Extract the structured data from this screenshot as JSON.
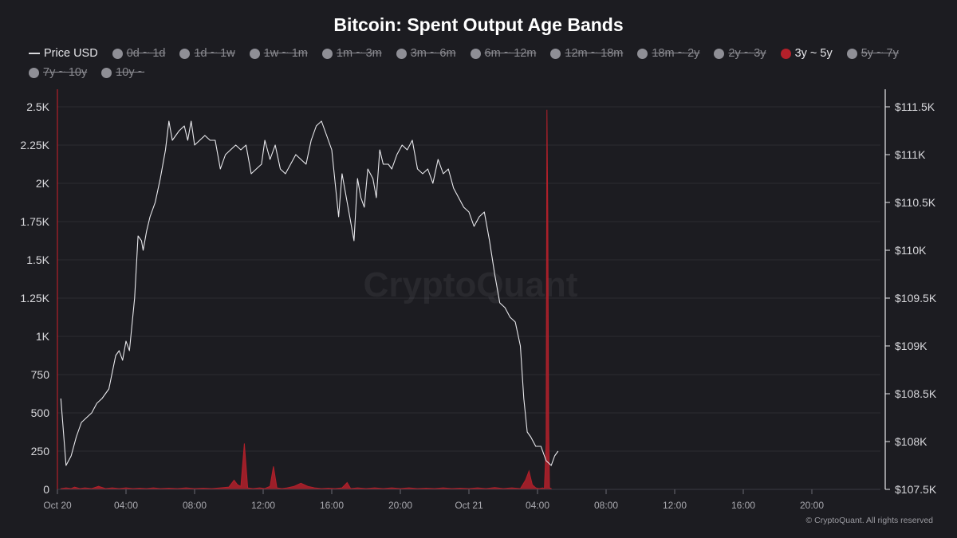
{
  "title": "Bitcoin: Spent Output Age Bands",
  "watermark": "CryptoQuant",
  "footer": "© CryptoQuant. All rights reserved",
  "colors": {
    "background": "#1c1c21",
    "price_line": "#e8e8ec",
    "band_3y_5y": "#b3202a",
    "inactive_dot": "#8f8f96",
    "grid": "#2b2b31"
  },
  "legend": [
    {
      "label": "Price USD",
      "kind": "line",
      "active": true
    },
    {
      "label": "0d ~ 1d",
      "kind": "dot",
      "active": false
    },
    {
      "label": "1d ~ 1w",
      "kind": "dot",
      "active": false
    },
    {
      "label": "1w ~ 1m",
      "kind": "dot",
      "active": false
    },
    {
      "label": "1m ~ 3m",
      "kind": "dot",
      "active": false
    },
    {
      "label": "3m ~ 6m",
      "kind": "dot",
      "active": false
    },
    {
      "label": "6m ~ 12m",
      "kind": "dot",
      "active": false
    },
    {
      "label": "12m ~ 18m",
      "kind": "dot",
      "active": false
    },
    {
      "label": "18m ~ 2y",
      "kind": "dot",
      "active": false
    },
    {
      "label": "2y ~ 3y",
      "kind": "dot",
      "active": false
    },
    {
      "label": "3y ~ 5y",
      "kind": "dot",
      "active": true,
      "color": "#b3202a"
    },
    {
      "label": "5y ~ 7y",
      "kind": "dot",
      "active": false
    },
    {
      "label": "7y ~ 10y",
      "kind": "dot",
      "active": false
    },
    {
      "label": "10y ~",
      "kind": "dot",
      "active": false
    }
  ],
  "chart_data": {
    "type": "line",
    "x_unit": "hours from Oct 20 00:00",
    "xlim": [
      0,
      48
    ],
    "x_ticks": [
      {
        "x": 0,
        "label": "Oct 20"
      },
      {
        "x": 4,
        "label": "04:00"
      },
      {
        "x": 8,
        "label": "08:00"
      },
      {
        "x": 12,
        "label": "12:00"
      },
      {
        "x": 16,
        "label": "16:00"
      },
      {
        "x": 20,
        "label": "20:00"
      },
      {
        "x": 24,
        "label": "Oct 21"
      },
      {
        "x": 28,
        "label": "04:00"
      },
      {
        "x": 32,
        "label": "08:00"
      },
      {
        "x": 36,
        "label": "12:00"
      },
      {
        "x": 40,
        "label": "16:00"
      },
      {
        "x": 44,
        "label": "20:00"
      }
    ],
    "y_left": {
      "ylim": [
        0,
        2500
      ],
      "ticks": [
        {
          "v": 0,
          "label": "0"
        },
        {
          "v": 250,
          "label": "250"
        },
        {
          "v": 500,
          "label": "500"
        },
        {
          "v": 750,
          "label": "750"
        },
        {
          "v": 1000,
          "label": "1K"
        },
        {
          "v": 1250,
          "label": "1.25K"
        },
        {
          "v": 1500,
          "label": "1.5K"
        },
        {
          "v": 1750,
          "label": "1.75K"
        },
        {
          "v": 2000,
          "label": "2K"
        },
        {
          "v": 2250,
          "label": "2.25K"
        },
        {
          "v": 2500,
          "label": "2.5K"
        }
      ]
    },
    "y_right": {
      "ylim": [
        107500,
        111500
      ],
      "ticks": [
        {
          "v": 107500,
          "label": "$107.5K"
        },
        {
          "v": 108000,
          "label": "$108K"
        },
        {
          "v": 108500,
          "label": "$108.5K"
        },
        {
          "v": 109000,
          "label": "$109K"
        },
        {
          "v": 109500,
          "label": "$109.5K"
        },
        {
          "v": 110000,
          "label": "$110K"
        },
        {
          "v": 110500,
          "label": "$110.5K"
        },
        {
          "v": 111000,
          "label": "$111K"
        },
        {
          "v": 111500,
          "label": "$111.5K"
        }
      ]
    },
    "series": [
      {
        "name": "Price USD",
        "axis": "right",
        "type": "line",
        "points": [
          [
            0.2,
            108450
          ],
          [
            0.5,
            107750
          ],
          [
            0.8,
            107850
          ],
          [
            1.1,
            108050
          ],
          [
            1.4,
            108200
          ],
          [
            1.7,
            108250
          ],
          [
            2.0,
            108300
          ],
          [
            2.3,
            108400
          ],
          [
            2.6,
            108450
          ],
          [
            3.0,
            108550
          ],
          [
            3.4,
            108900
          ],
          [
            3.6,
            108950
          ],
          [
            3.8,
            108850
          ],
          [
            4.0,
            109050
          ],
          [
            4.2,
            108950
          ],
          [
            4.5,
            109500
          ],
          [
            4.7,
            110150
          ],
          [
            4.9,
            110100
          ],
          [
            5.0,
            110000
          ],
          [
            5.2,
            110200
          ],
          [
            5.4,
            110350
          ],
          [
            5.7,
            110500
          ],
          [
            6.0,
            110750
          ],
          [
            6.3,
            111050
          ],
          [
            6.5,
            111350
          ],
          [
            6.7,
            111150
          ],
          [
            6.9,
            111200
          ],
          [
            7.1,
            111250
          ],
          [
            7.4,
            111300
          ],
          [
            7.6,
            111150
          ],
          [
            7.8,
            111350
          ],
          [
            8.0,
            111100
          ],
          [
            8.3,
            111150
          ],
          [
            8.6,
            111200
          ],
          [
            8.9,
            111150
          ],
          [
            9.2,
            111150
          ],
          [
            9.5,
            110850
          ],
          [
            9.8,
            111000
          ],
          [
            10.1,
            111050
          ],
          [
            10.4,
            111100
          ],
          [
            10.7,
            111050
          ],
          [
            11.0,
            111100
          ],
          [
            11.3,
            110800
          ],
          [
            11.6,
            110850
          ],
          [
            11.9,
            110900
          ],
          [
            12.1,
            111150
          ],
          [
            12.4,
            110950
          ],
          [
            12.7,
            111100
          ],
          [
            13.0,
            110850
          ],
          [
            13.3,
            110800
          ],
          [
            13.6,
            110900
          ],
          [
            13.9,
            111000
          ],
          [
            14.2,
            110950
          ],
          [
            14.5,
            110900
          ],
          [
            14.8,
            111150
          ],
          [
            15.1,
            111300
          ],
          [
            15.4,
            111350
          ],
          [
            15.7,
            111200
          ],
          [
            16.0,
            111050
          ],
          [
            16.2,
            110700
          ],
          [
            16.4,
            110350
          ],
          [
            16.6,
            110800
          ],
          [
            16.8,
            110600
          ],
          [
            17.0,
            110400
          ],
          [
            17.3,
            110100
          ],
          [
            17.5,
            110750
          ],
          [
            17.7,
            110550
          ],
          [
            17.9,
            110450
          ],
          [
            18.1,
            110850
          ],
          [
            18.4,
            110750
          ],
          [
            18.6,
            110550
          ],
          [
            18.8,
            111050
          ],
          [
            19.0,
            110900
          ],
          [
            19.3,
            110900
          ],
          [
            19.5,
            110850
          ],
          [
            19.8,
            111000
          ],
          [
            20.1,
            111100
          ],
          [
            20.4,
            111050
          ],
          [
            20.7,
            111150
          ],
          [
            21.0,
            110850
          ],
          [
            21.3,
            110800
          ],
          [
            21.6,
            110850
          ],
          [
            21.9,
            110700
          ],
          [
            22.2,
            110950
          ],
          [
            22.5,
            110800
          ],
          [
            22.8,
            110850
          ],
          [
            23.1,
            110650
          ],
          [
            23.4,
            110550
          ],
          [
            23.7,
            110450
          ],
          [
            24.0,
            110400
          ],
          [
            24.3,
            110250
          ],
          [
            24.6,
            110350
          ],
          [
            24.9,
            110400
          ],
          [
            25.2,
            110100
          ],
          [
            25.5,
            109750
          ],
          [
            25.8,
            109450
          ],
          [
            26.1,
            109400
          ],
          [
            26.4,
            109300
          ],
          [
            26.7,
            109250
          ],
          [
            27.0,
            109000
          ],
          [
            27.2,
            108450
          ],
          [
            27.4,
            108100
          ],
          [
            27.6,
            108050
          ],
          [
            27.9,
            107950
          ],
          [
            28.2,
            107950
          ],
          [
            28.5,
            107800
          ],
          [
            28.8,
            107750
          ],
          [
            29.0,
            107850
          ],
          [
            29.2,
            107900
          ]
        ]
      },
      {
        "name": "3y ~ 5y",
        "axis": "left",
        "type": "area",
        "points": [
          [
            0.2,
            5
          ],
          [
            0.5,
            10
          ],
          [
            0.8,
            5
          ],
          [
            1.0,
            15
          ],
          [
            1.3,
            5
          ],
          [
            1.6,
            10
          ],
          [
            2.0,
            5
          ],
          [
            2.4,
            20
          ],
          [
            2.8,
            5
          ],
          [
            3.2,
            10
          ],
          [
            3.6,
            5
          ],
          [
            4.0,
            10
          ],
          [
            4.4,
            5
          ],
          [
            4.8,
            8
          ],
          [
            5.2,
            5
          ],
          [
            5.6,
            10
          ],
          [
            6.0,
            5
          ],
          [
            6.5,
            8
          ],
          [
            7.0,
            5
          ],
          [
            7.5,
            10
          ],
          [
            8.0,
            5
          ],
          [
            8.5,
            8
          ],
          [
            9.0,
            5
          ],
          [
            9.5,
            10
          ],
          [
            10.0,
            15
          ],
          [
            10.3,
            60
          ],
          [
            10.5,
            30
          ],
          [
            10.7,
            20
          ],
          [
            10.9,
            300
          ],
          [
            11.1,
            10
          ],
          [
            11.4,
            5
          ],
          [
            11.8,
            10
          ],
          [
            12.1,
            5
          ],
          [
            12.4,
            20
          ],
          [
            12.6,
            150
          ],
          [
            12.8,
            10
          ],
          [
            13.1,
            5
          ],
          [
            13.4,
            10
          ],
          [
            13.8,
            20
          ],
          [
            14.2,
            40
          ],
          [
            14.6,
            20
          ],
          [
            15.0,
            10
          ],
          [
            15.4,
            5
          ],
          [
            15.8,
            8
          ],
          [
            16.2,
            5
          ],
          [
            16.6,
            10
          ],
          [
            16.9,
            45
          ],
          [
            17.1,
            5
          ],
          [
            17.5,
            10
          ],
          [
            18.0,
            5
          ],
          [
            18.5,
            10
          ],
          [
            19.0,
            5
          ],
          [
            19.5,
            10
          ],
          [
            20.0,
            5
          ],
          [
            20.5,
            10
          ],
          [
            21.0,
            5
          ],
          [
            21.5,
            8
          ],
          [
            22.0,
            5
          ],
          [
            22.5,
            10
          ],
          [
            23.0,
            5
          ],
          [
            23.5,
            8
          ],
          [
            24.0,
            5
          ],
          [
            24.5,
            10
          ],
          [
            25.0,
            5
          ],
          [
            25.5,
            12
          ],
          [
            26.0,
            5
          ],
          [
            26.5,
            10
          ],
          [
            27.0,
            5
          ],
          [
            27.3,
            60
          ],
          [
            27.5,
            120
          ],
          [
            27.7,
            30
          ],
          [
            27.9,
            10
          ],
          [
            28.1,
            5
          ],
          [
            28.3,
            10
          ],
          [
            28.4,
            5
          ],
          [
            28.5,
            300
          ],
          [
            28.55,
            2480
          ],
          [
            28.6,
            1800
          ],
          [
            28.65,
            400
          ],
          [
            28.7,
            10
          ],
          [
            28.8,
            5
          ]
        ]
      }
    ],
    "grid": true,
    "legend_position": "top-left"
  }
}
